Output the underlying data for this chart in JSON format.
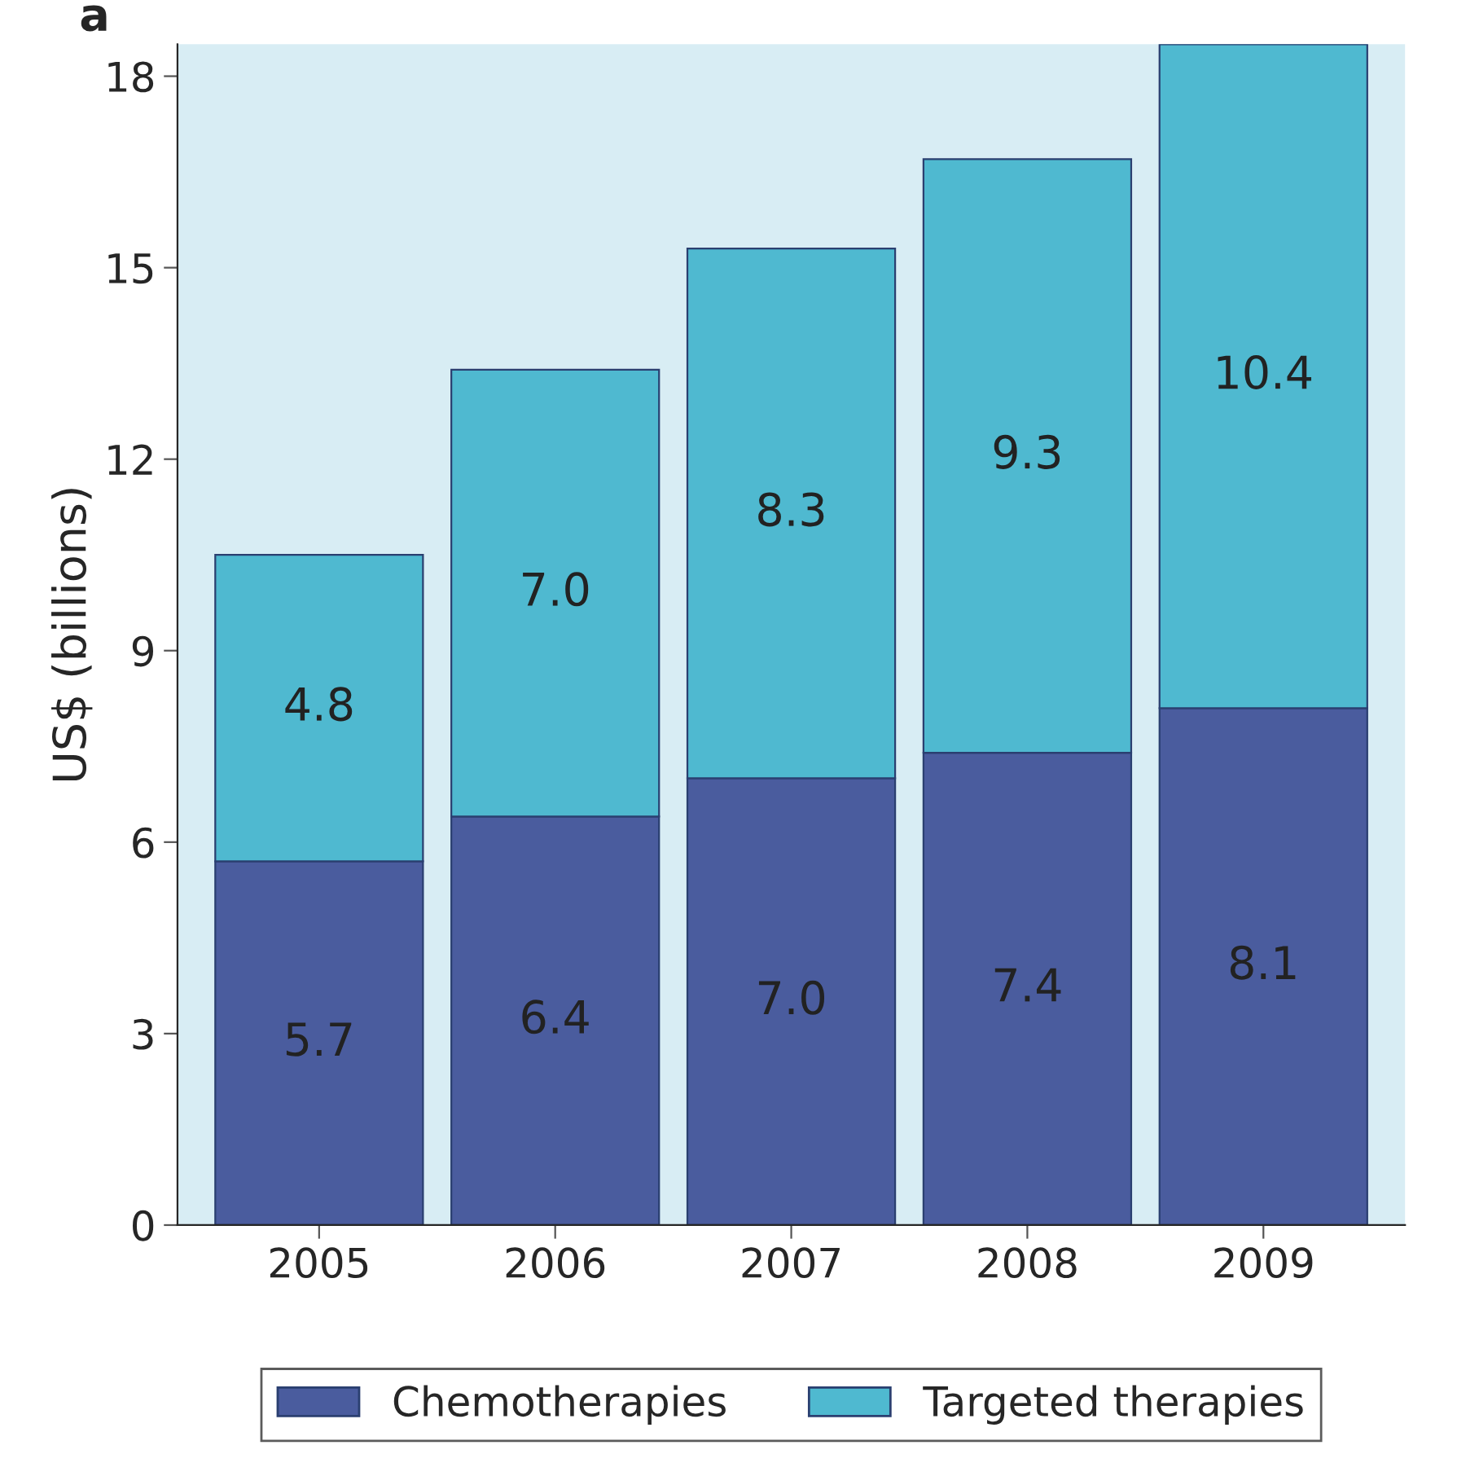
{
  "chart_data": {
    "type": "bar",
    "title": "a",
    "ylabel": "US$ (billions)",
    "categories": [
      "2005",
      "2006",
      "2007",
      "2008",
      "2009"
    ],
    "series": [
      {
        "name": "Chemotherapies",
        "color": "#4a5c9e",
        "values": [
          5.7,
          6.4,
          7.0,
          7.4,
          8.1
        ],
        "value_labels": [
          "5.7",
          "6.4",
          "7.0",
          "7.4",
          "8.1"
        ]
      },
      {
        "name": "Targeted therapies",
        "color": "#4fb9d0",
        "values": [
          4.8,
          7.0,
          8.3,
          9.3,
          10.4
        ],
        "value_labels": [
          "4.8",
          "7.0",
          "8.3",
          "9.3",
          "10.4"
        ]
      }
    ],
    "stacked": true,
    "ylim": [
      0,
      18.5
    ],
    "yticks": [
      0,
      3,
      6,
      9,
      12,
      15,
      18
    ],
    "grid": false,
    "legend": "bottom"
  }
}
